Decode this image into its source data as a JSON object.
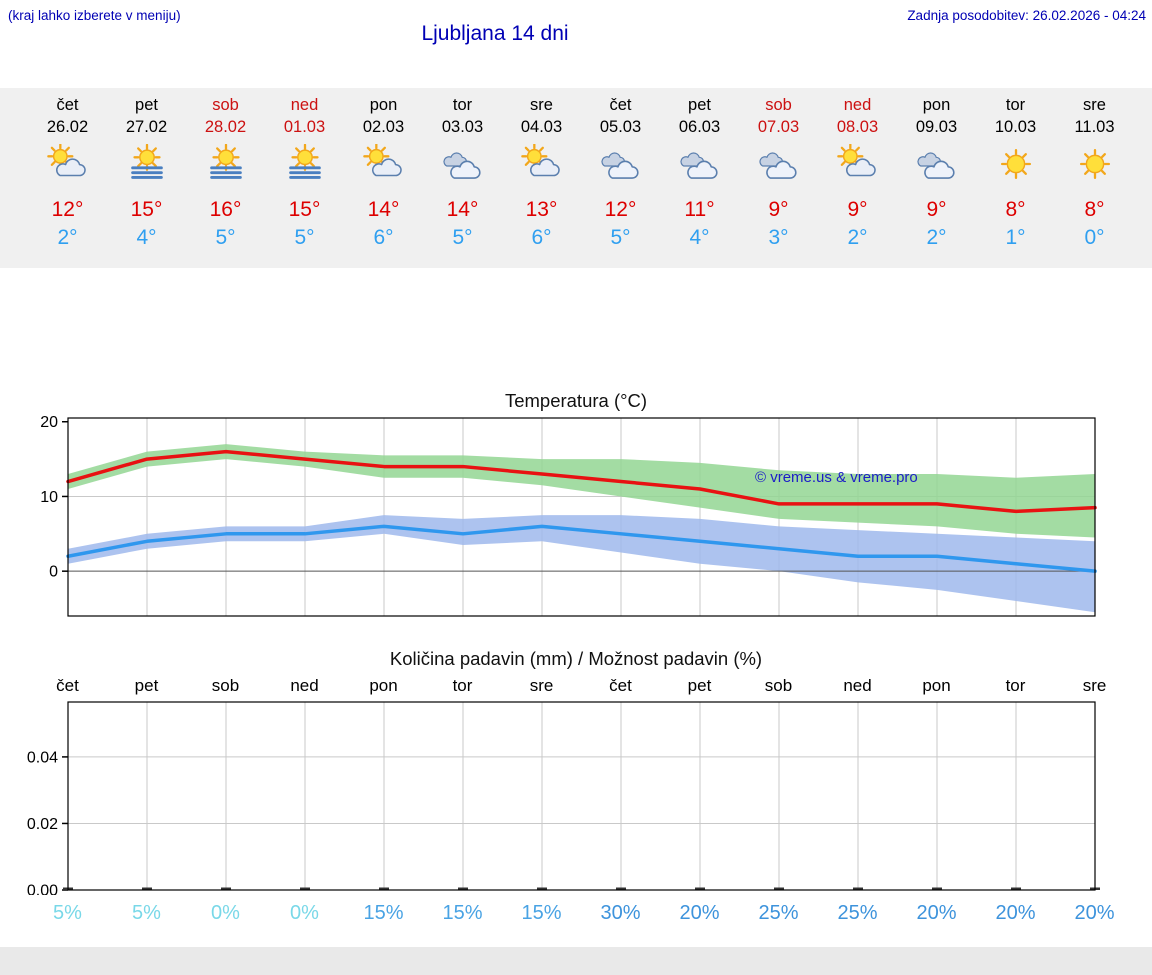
{
  "header": {
    "hint": "(kraj lahko izberete v meniju)",
    "title": "Ljubljana 14 dni",
    "updated": "Zadnja posodobitev: 26.02.2026 - 04:24"
  },
  "colors": {
    "header_text": "#0000b4",
    "band_bg": "#f0f0f0",
    "temp_max": "#dd0000",
    "temp_min": "#2f9ff0",
    "weekend": "#cc1111",
    "footer_bg": "#e9e9e9"
  },
  "forecast": {
    "days": [
      {
        "name": "čet",
        "date": "26.02",
        "weekend": false,
        "icon": "sun-cloud",
        "max": "12°",
        "min": "2°"
      },
      {
        "name": "pet",
        "date": "27.02",
        "weekend": false,
        "icon": "sun-fog",
        "max": "15°",
        "min": "4°"
      },
      {
        "name": "sob",
        "date": "28.02",
        "weekend": true,
        "icon": "sun-fog",
        "max": "16°",
        "min": "5°"
      },
      {
        "name": "ned",
        "date": "01.03",
        "weekend": true,
        "icon": "sun-fog",
        "max": "15°",
        "min": "5°"
      },
      {
        "name": "pon",
        "date": "02.03",
        "weekend": false,
        "icon": "sun-cloud",
        "max": "14°",
        "min": "6°"
      },
      {
        "name": "tor",
        "date": "03.03",
        "weekend": false,
        "icon": "cloudy",
        "max": "14°",
        "min": "5°"
      },
      {
        "name": "sre",
        "date": "04.03",
        "weekend": false,
        "icon": "sun-cloud",
        "max": "13°",
        "min": "6°"
      },
      {
        "name": "čet",
        "date": "05.03",
        "weekend": false,
        "icon": "cloudy",
        "max": "12°",
        "min": "5°"
      },
      {
        "name": "pet",
        "date": "06.03",
        "weekend": false,
        "icon": "cloudy",
        "max": "11°",
        "min": "4°"
      },
      {
        "name": "sob",
        "date": "07.03",
        "weekend": true,
        "icon": "cloudy",
        "max": "9°",
        "min": "3°"
      },
      {
        "name": "ned",
        "date": "08.03",
        "weekend": true,
        "icon": "sun-cloud",
        "max": "9°",
        "min": "2°"
      },
      {
        "name": "pon",
        "date": "09.03",
        "weekend": false,
        "icon": "cloudy",
        "max": "9°",
        "min": "2°"
      },
      {
        "name": "tor",
        "date": "10.03",
        "weekend": false,
        "icon": "sunny",
        "max": "8°",
        "min": "1°"
      },
      {
        "name": "sre",
        "date": "11.03",
        "weekend": false,
        "icon": "sunny",
        "max": "8°",
        "min": "0°"
      }
    ]
  },
  "chart_data": [
    {
      "type": "line",
      "title": "Temperatura (°C)",
      "watermark": "© vreme.us & vreme.pro",
      "categories": [
        "26.02",
        "27.02",
        "28.02",
        "01.03",
        "02.03",
        "03.03",
        "04.03",
        "05.03",
        "06.03",
        "07.03",
        "08.03",
        "09.03",
        "10.03",
        "11.03"
      ],
      "ylim": [
        -6,
        20.5
      ],
      "yticks": [
        0,
        10,
        20
      ],
      "grid": true,
      "legend_position": "none",
      "series": [
        {
          "name": "Max temperatura",
          "color": "#e81212",
          "values": [
            12,
            15,
            16,
            15,
            14,
            14,
            13,
            12,
            11,
            9,
            9,
            9,
            8,
            8.5
          ],
          "band_upper": [
            13,
            16,
            17,
            16,
            15.5,
            15.5,
            15,
            15,
            14.5,
            13.5,
            13,
            13,
            12.5,
            13
          ],
          "band_lower": [
            11,
            14,
            15,
            14,
            12.5,
            12.5,
            11.5,
            10,
            8.5,
            7,
            6.5,
            6,
            5,
            4.5
          ],
          "band_color": "#93d693"
        },
        {
          "name": "Min temperatura",
          "color": "#2f97ee",
          "values": [
            2,
            4,
            5,
            5,
            6,
            5,
            6,
            5,
            4,
            3,
            2,
            2,
            1,
            0
          ],
          "band_upper": [
            3,
            5,
            6,
            6,
            7.5,
            7,
            7.5,
            7.5,
            7,
            6,
            5.5,
            5,
            4.5,
            4
          ],
          "band_lower": [
            1,
            3,
            4,
            4,
            5,
            3.5,
            4,
            2.5,
            1,
            0,
            -1.5,
            -2.5,
            -4,
            -5.5
          ],
          "band_color": "#9fb9ec"
        }
      ]
    },
    {
      "type": "bar",
      "title": "Količina padavin (mm) / Možnost padavin (%)",
      "categories": [
        "čet",
        "pet",
        "sob",
        "ned",
        "pon",
        "tor",
        "sre",
        "čet",
        "pet",
        "sob",
        "ned",
        "pon",
        "tor",
        "sre"
      ],
      "values": [
        0,
        0,
        0,
        0,
        0,
        0,
        0,
        0,
        0,
        0,
        0,
        0,
        0,
        0
      ],
      "ylim": [
        0,
        0.0565
      ],
      "yticks": [
        "0.00",
        "0.02",
        "0.04"
      ],
      "grid": true,
      "probabilities": [
        {
          "label": "5%",
          "color": "#79d8e8"
        },
        {
          "label": "5%",
          "color": "#79d8e8"
        },
        {
          "label": "0%",
          "color": "#79d8e8"
        },
        {
          "label": "0%",
          "color": "#79d8e8"
        },
        {
          "label": "15%",
          "color": "#49a3e4"
        },
        {
          "label": "15%",
          "color": "#49a3e4"
        },
        {
          "label": "15%",
          "color": "#49a3e4"
        },
        {
          "label": "30%",
          "color": "#3d93dc"
        },
        {
          "label": "20%",
          "color": "#3d93dc"
        },
        {
          "label": "25%",
          "color": "#3d93dc"
        },
        {
          "label": "25%",
          "color": "#3d93dc"
        },
        {
          "label": "20%",
          "color": "#3d93dc"
        },
        {
          "label": "20%",
          "color": "#3d93dc"
        },
        {
          "label": "20%",
          "color": "#3d93dc"
        }
      ]
    }
  ]
}
